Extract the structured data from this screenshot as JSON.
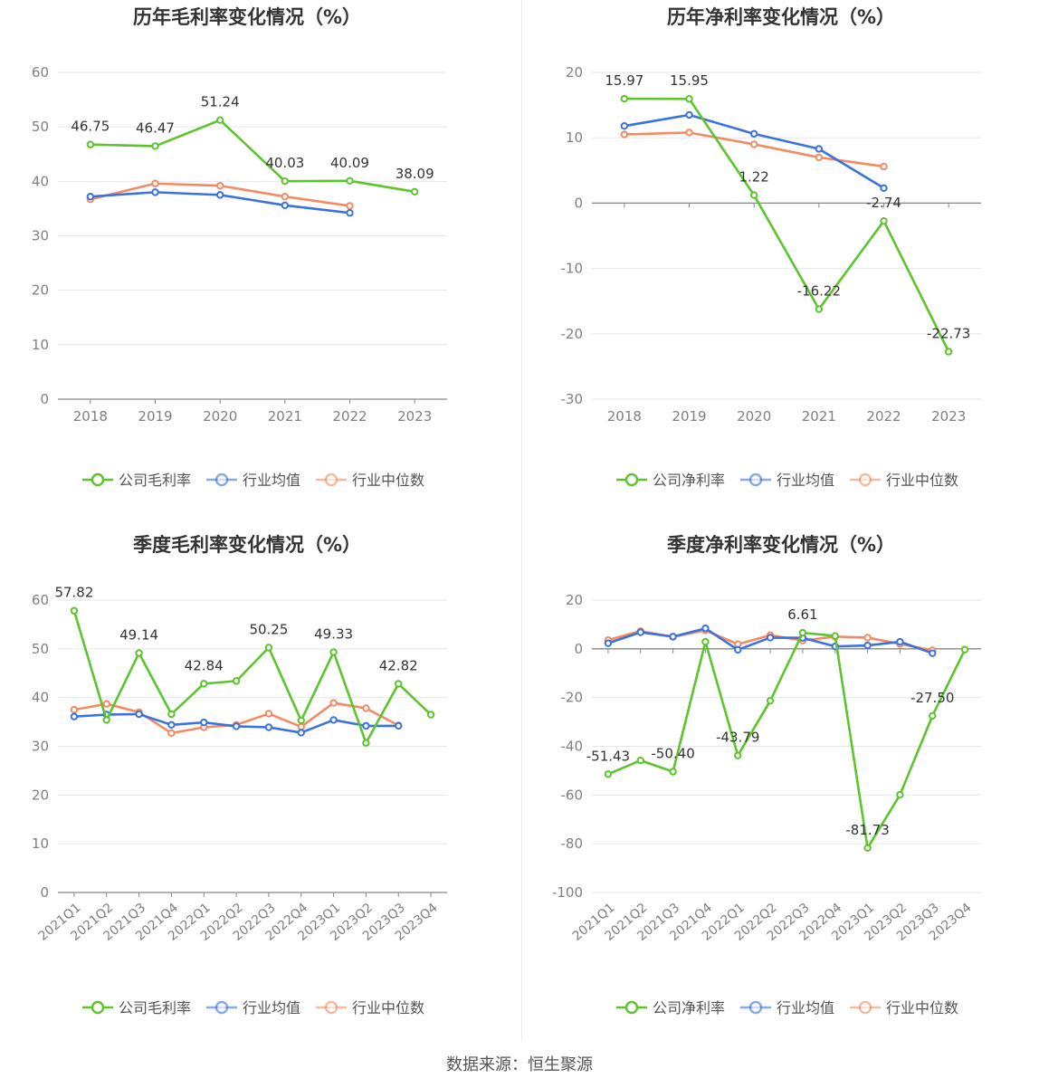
{
  "source_label": "数据来源：恒生聚源",
  "colors": {
    "company": "#5cc42c",
    "avg": "#3a72e0",
    "median": "#f28b61",
    "grid": "#e6e6ee",
    "axis": "#888888",
    "title": "#333333",
    "tick": "#808080"
  },
  "chart_data": [
    {
      "type": "line",
      "title": "历年毛利率变化情况（%）",
      "categories": [
        "2018",
        "2019",
        "2020",
        "2021",
        "2022",
        "2023"
      ],
      "ylim": [
        0,
        60
      ],
      "yticks": [
        0,
        10,
        20,
        30,
        40,
        50,
        60
      ],
      "series": [
        {
          "name": "公司毛利率",
          "values": [
            46.75,
            46.47,
            51.24,
            40.03,
            40.09,
            38.09
          ],
          "labels": [
            "46.75",
            "46.47",
            "51.24",
            "40.03",
            "40.09",
            "38.09"
          ],
          "color": "#5cc42c"
        },
        {
          "name": "行业均值",
          "values": [
            37.2,
            38.0,
            37.5,
            35.6,
            34.2,
            null
          ],
          "color": "#3a72e0"
        },
        {
          "name": "行业中位数",
          "values": [
            36.7,
            39.6,
            39.2,
            37.2,
            35.5,
            null
          ],
          "color": "#f28b61"
        }
      ],
      "legend": "bottom",
      "grid": true
    },
    {
      "type": "line",
      "title": "历年净利率变化情况（%）",
      "categories": [
        "2018",
        "2019",
        "2020",
        "2021",
        "2022",
        "2023"
      ],
      "ylim": [
        -30,
        20
      ],
      "yticks": [
        -30,
        -20,
        -10,
        0,
        10,
        20
      ],
      "series": [
        {
          "name": "公司净利率",
          "values": [
            15.97,
            15.95,
            1.22,
            -16.22,
            -2.74,
            -22.73
          ],
          "labels": [
            "15.97",
            "15.95",
            "1.22",
            "-16.22",
            "-2.74",
            "-22.73"
          ],
          "color": "#5cc42c"
        },
        {
          "name": "行业均值",
          "values": [
            11.8,
            13.5,
            10.6,
            8.3,
            2.3,
            null
          ],
          "color": "#3a72e0"
        },
        {
          "name": "行业中位数",
          "values": [
            10.5,
            10.8,
            9.0,
            7.0,
            5.6,
            null
          ],
          "color": "#f28b61"
        }
      ],
      "legend": "bottom",
      "grid": true
    },
    {
      "type": "line",
      "title": "季度毛利率变化情况（%）",
      "categories": [
        "2021Q1",
        "2021Q2",
        "2021Q3",
        "2021Q4",
        "2022Q1",
        "2022Q2",
        "2022Q3",
        "2022Q4",
        "2023Q1",
        "2023Q2",
        "2023Q3",
        "2023Q4"
      ],
      "ylim": [
        0,
        60
      ],
      "yticks": [
        0,
        10,
        20,
        30,
        40,
        50,
        60
      ],
      "series": [
        {
          "name": "公司毛利率",
          "values": [
            57.82,
            35.4,
            49.14,
            36.6,
            42.84,
            43.4,
            50.25,
            35.3,
            49.33,
            30.7,
            42.82,
            36.5
          ],
          "labels": [
            "57.82",
            "",
            "49.14",
            "",
            "42.84",
            "",
            "50.25",
            "",
            "49.33",
            "",
            "42.82",
            ""
          ],
          "color": "#5cc42c"
        },
        {
          "name": "行业均值",
          "values": [
            36.1,
            36.5,
            36.6,
            34.4,
            34.9,
            34.1,
            33.9,
            32.8,
            35.4,
            34.2,
            34.2,
            null
          ],
          "color": "#3a72e0"
        },
        {
          "name": "行业中位数",
          "values": [
            37.5,
            38.7,
            37.0,
            32.7,
            33.9,
            34.4,
            36.7,
            34.0,
            38.9,
            37.8,
            34.3,
            null
          ],
          "color": "#f28b61"
        }
      ],
      "legend": "bottom",
      "grid": true
    },
    {
      "type": "line",
      "title": "季度净利率变化情况（%）",
      "categories": [
        "2021Q1",
        "2021Q2",
        "2021Q3",
        "2021Q4",
        "2022Q1",
        "2022Q2",
        "2022Q3",
        "2022Q4",
        "2023Q1",
        "2023Q2",
        "2023Q3",
        "2023Q4"
      ],
      "ylim": [
        -100,
        20
      ],
      "yticks": [
        -100,
        -80,
        -60,
        -40,
        -20,
        0,
        20
      ],
      "series": [
        {
          "name": "公司净利率",
          "values": [
            -51.43,
            -45.8,
            -50.4,
            2.9,
            -43.79,
            -21.3,
            6.61,
            5.3,
            -81.73,
            -59.9,
            -27.5,
            -0.3
          ],
          "labels": [
            "-51.43",
            "",
            "-50.40",
            "",
            "-43.79",
            "",
            "6.61",
            "",
            "-81.73",
            "",
            "-27.50",
            ""
          ],
          "color": "#5cc42c"
        },
        {
          "name": "行业均值",
          "values": [
            2.3,
            6.8,
            5.0,
            8.4,
            -0.4,
            4.6,
            4.5,
            1.0,
            1.4,
            2.9,
            -1.8,
            null
          ],
          "color": "#3a72e0"
        },
        {
          "name": "行业中位数",
          "values": [
            3.6,
            7.3,
            4.9,
            7.6,
            1.9,
            5.6,
            3.4,
            5.0,
            4.6,
            2.0,
            -0.6,
            null
          ],
          "color": "#f28b61"
        }
      ],
      "legend": "bottom",
      "grid": true
    }
  ]
}
